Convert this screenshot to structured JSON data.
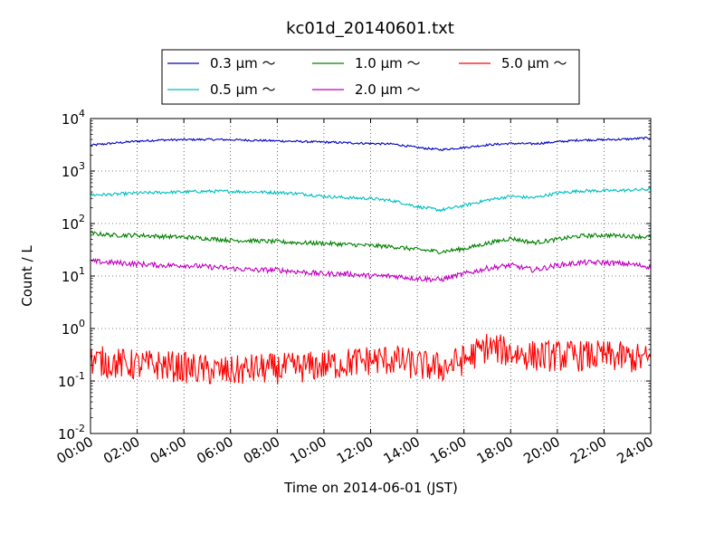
{
  "chart_data": {
    "type": "line",
    "title": "kc01d_20140601.txt",
    "xlabel": "Time on 2014-06-01 (JST)",
    "ylabel": "Count / L",
    "yscale": "log",
    "xlim": [
      "00:00",
      "24:00"
    ],
    "ylim": [
      0.01,
      10000
    ],
    "x_ticks": [
      "00:00",
      "02:00",
      "04:00",
      "06:00",
      "08:00",
      "10:00",
      "12:00",
      "14:00",
      "16:00",
      "18:00",
      "20:00",
      "22:00",
      "24:00"
    ],
    "y_ticks": [
      {
        "base": "10",
        "exp": "-2"
      },
      {
        "base": "10",
        "exp": "-1"
      },
      {
        "base": "10",
        "exp": "0"
      },
      {
        "base": "10",
        "exp": "1"
      },
      {
        "base": "10",
        "exp": "2"
      },
      {
        "base": "10",
        "exp": "3"
      },
      {
        "base": "10",
        "exp": "4"
      }
    ],
    "grid": true,
    "legend_position": "top-center",
    "x": [
      "00:00",
      "01:00",
      "02:00",
      "03:00",
      "04:00",
      "05:00",
      "06:00",
      "07:00",
      "08:00",
      "09:00",
      "10:00",
      "11:00",
      "12:00",
      "13:00",
      "14:00",
      "15:00",
      "16:00",
      "17:00",
      "18:00",
      "19:00",
      "20:00",
      "21:00",
      "22:00",
      "23:00",
      "24:00"
    ],
    "series": [
      {
        "name": "0.3 μm ～",
        "color": "#0000bf",
        "noise": 0.02,
        "values": [
          3100,
          3400,
          3700,
          3900,
          3950,
          4000,
          3950,
          3850,
          3750,
          3650,
          3550,
          3450,
          3350,
          3250,
          2800,
          2550,
          2800,
          3150,
          3350,
          3300,
          3600,
          3900,
          3950,
          4050,
          4300
        ]
      },
      {
        "name": "0.5 μm ～",
        "color": "#00bfbf",
        "noise": 0.03,
        "values": [
          350,
          360,
          380,
          390,
          400,
          410,
          410,
          400,
          390,
          370,
          330,
          310,
          300,
          270,
          210,
          180,
          220,
          280,
          330,
          310,
          380,
          420,
          420,
          430,
          450
        ]
      },
      {
        "name": "1.0 μm ～",
        "color": "#008000",
        "noise": 0.04,
        "values": [
          65,
          60,
          60,
          57,
          55,
          52,
          48,
          47,
          45,
          43,
          42,
          40,
          38,
          36,
          32,
          29,
          33,
          42,
          52,
          43,
          50,
          58,
          60,
          58,
          55
        ]
      },
      {
        "name": "2.0 μm ～",
        "color": "#bf00bf",
        "noise": 0.05,
        "values": [
          19,
          18,
          17,
          16,
          16,
          15,
          14,
          13,
          13,
          12,
          11,
          11,
          10,
          10,
          9,
          8.5,
          11,
          14,
          16,
          13,
          16,
          18,
          18,
          17,
          15
        ]
      },
      {
        "name": "5.0 μm ～",
        "color": "#ff0000",
        "noise": 0.3,
        "values": [
          0.25,
          0.22,
          0.2,
          0.2,
          0.18,
          0.16,
          0.15,
          0.17,
          0.17,
          0.18,
          0.2,
          0.22,
          0.25,
          0.25,
          0.2,
          0.18,
          0.25,
          0.45,
          0.35,
          0.3,
          0.3,
          0.3,
          0.3,
          0.28,
          0.25
        ]
      }
    ]
  }
}
